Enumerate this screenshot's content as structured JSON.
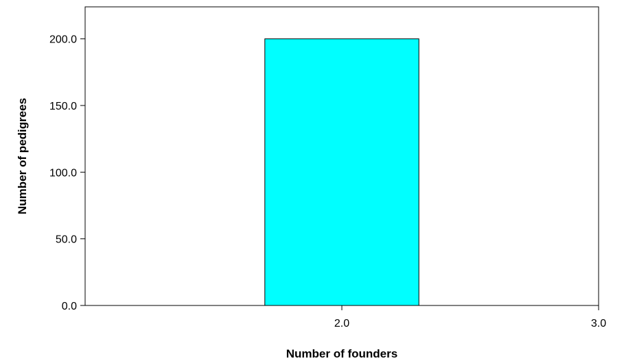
{
  "chart_data": {
    "type": "bar",
    "categories": [
      "2.0"
    ],
    "values": [
      200
    ],
    "xlabel": "Number of founders",
    "ylabel": "Number of pedigrees",
    "ylim": [
      0,
      224
    ],
    "xlim": [
      1.0,
      3.0
    ],
    "bar_x": 2.0,
    "bar_width": 0.6,
    "x_ticks": [
      2.0,
      3.0
    ],
    "x_tick_labels": [
      "2.0",
      "3.0"
    ],
    "y_ticks": [
      0,
      50,
      100,
      150,
      200
    ],
    "y_tick_labels": [
      "0.0",
      "50.0",
      "100.0",
      "150.0",
      "200.0"
    ],
    "grid": false,
    "legend": "none",
    "colors": {
      "bar_fill": "#00FFFF",
      "bar_stroke": "#000000",
      "axis": "#000000"
    }
  }
}
